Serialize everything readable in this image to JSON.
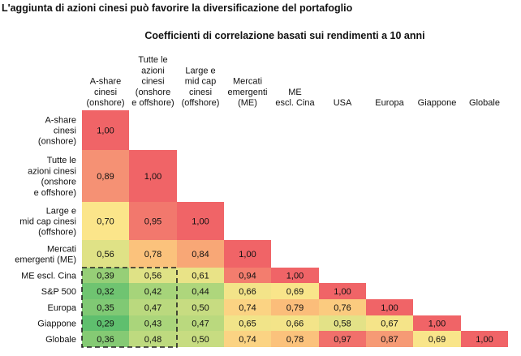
{
  "chart_data": {
    "type": "heatmap",
    "title": "L'aggiunta di azioni cinesi può favorire la diversificazione del portafoglio",
    "subtitle": "Coefficienti di correlazione basati sui rendimenti a 10 anni",
    "columns": [
      [
        "A-share",
        "cinesi",
        "(onshore)"
      ],
      [
        "Tutte le",
        "azioni",
        "cinesi",
        "(onshore",
        "e offshore)"
      ],
      [
        "Large e",
        "mid cap",
        "cinesi",
        "(offshore)"
      ],
      [
        "Mercati",
        "emergenti",
        "(ME)"
      ],
      [
        "ME",
        "escl. Cina"
      ],
      [
        "USA"
      ],
      [
        "Europa"
      ],
      [
        "Giappone"
      ],
      [
        "Globale"
      ]
    ],
    "rows": [
      [
        "A-share",
        "cinesi",
        "(onshore)"
      ],
      [
        "Tutte le",
        "azioni cinesi",
        "(onshore",
        "e offshore)"
      ],
      [
        "Large e",
        "mid cap cinesi",
        "(offshore)"
      ],
      [
        "Mercati",
        "emergenti (ME)"
      ],
      [
        "ME escl. Cina"
      ],
      [
        "S&P 500"
      ],
      [
        "Europa"
      ],
      [
        "Giappone"
      ],
      [
        "Globale"
      ]
    ],
    "values": [
      [
        "1,00"
      ],
      [
        "0,89",
        "1,00"
      ],
      [
        "0,70",
        "0,95",
        "1,00"
      ],
      [
        "0,56",
        "0,78",
        "0,84",
        "1,00"
      ],
      [
        "0,39",
        "0,56",
        "0,61",
        "0,94",
        "1,00"
      ],
      [
        "0,32",
        "0,42",
        "0,44",
        "0,66",
        "0,69",
        "1,00"
      ],
      [
        "0,35",
        "0,47",
        "0,50",
        "0,74",
        "0,79",
        "0,76",
        "1,00"
      ],
      [
        "0,29",
        "0,43",
        "0,47",
        "0,65",
        "0,66",
        "0,58",
        "0,67",
        "1,00"
      ],
      [
        "0,36",
        "0,48",
        "0,50",
        "0,74",
        "0,78",
        "0,97",
        "0,87",
        "0,69",
        "1,00"
      ]
    ],
    "color_scale": {
      "stops": [
        {
          "value": 0.29,
          "color": "#5fbf6e"
        },
        {
          "value": 0.42,
          "color": "#a6d47a"
        },
        {
          "value": 0.56,
          "color": "#dfe286"
        },
        {
          "value": 0.7,
          "color": "#fbe58a"
        },
        {
          "value": 0.8,
          "color": "#fbb978"
        },
        {
          "value": 0.89,
          "color": "#f59174"
        },
        {
          "value": 1.0,
          "color": "#f06467"
        }
      ]
    },
    "highlight": {
      "style": "dashed",
      "color": "#222222",
      "from_row": 4,
      "to_row": 8,
      "from_col": 0,
      "to_col": 1
    }
  }
}
